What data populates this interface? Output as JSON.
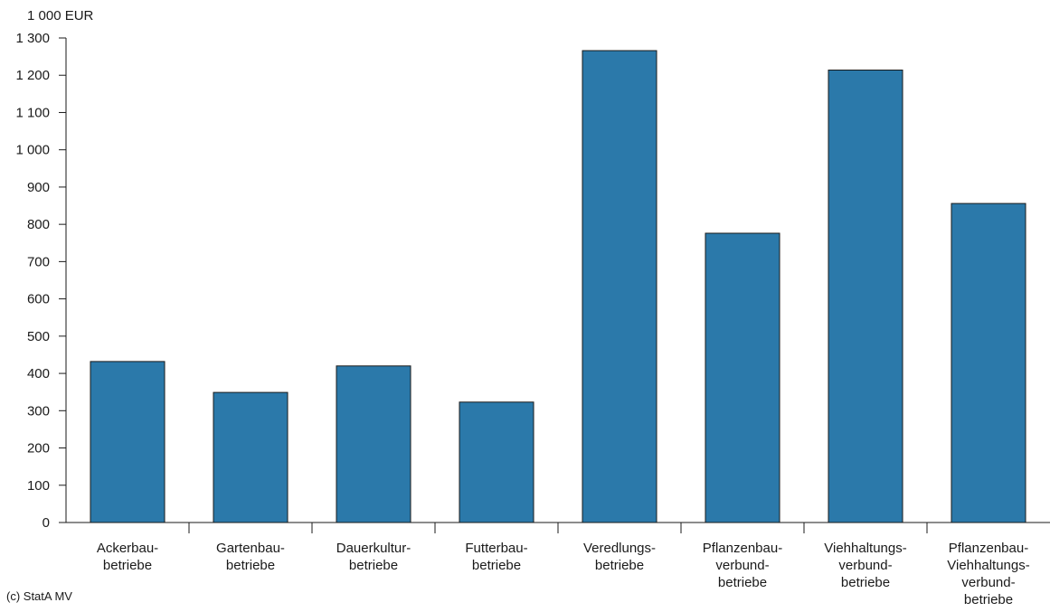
{
  "chart_data": {
    "type": "bar",
    "ylabel": "1 000 EUR",
    "ylim": [
      0,
      1300
    ],
    "yticks": [
      0,
      100,
      200,
      300,
      400,
      500,
      600,
      700,
      800,
      900,
      1000,
      1100,
      1200,
      1300
    ],
    "ytick_labels": [
      "0",
      "100",
      "200",
      "300",
      "400",
      "500",
      "600",
      "700",
      "800",
      "900",
      "1 000",
      "1 100",
      "1 200",
      "1 300"
    ],
    "categories": [
      [
        "Ackerbau-",
        "betriebe"
      ],
      [
        "Gartenbau-",
        "betriebe"
      ],
      [
        "Dauerkultur-",
        "betriebe"
      ],
      [
        "Futterbau-",
        "betriebe"
      ],
      [
        "Veredlungs-",
        "betriebe"
      ],
      [
        "Pflanzenbau-",
        "verbund-",
        "betriebe"
      ],
      [
        "Viehhaltungs-",
        "verbund-",
        "betriebe"
      ],
      [
        "Pflanzenbau-",
        "Viehhaltungs-",
        "verbund-",
        "betriebe"
      ]
    ],
    "values": [
      432,
      349,
      420,
      323,
      1266,
      776,
      1214,
      856
    ],
    "grid": false,
    "bar_color": "#2b79aa",
    "bar_edge_color": "#1a1a1a"
  },
  "footer": {
    "credit": "(c) StatA MV"
  }
}
